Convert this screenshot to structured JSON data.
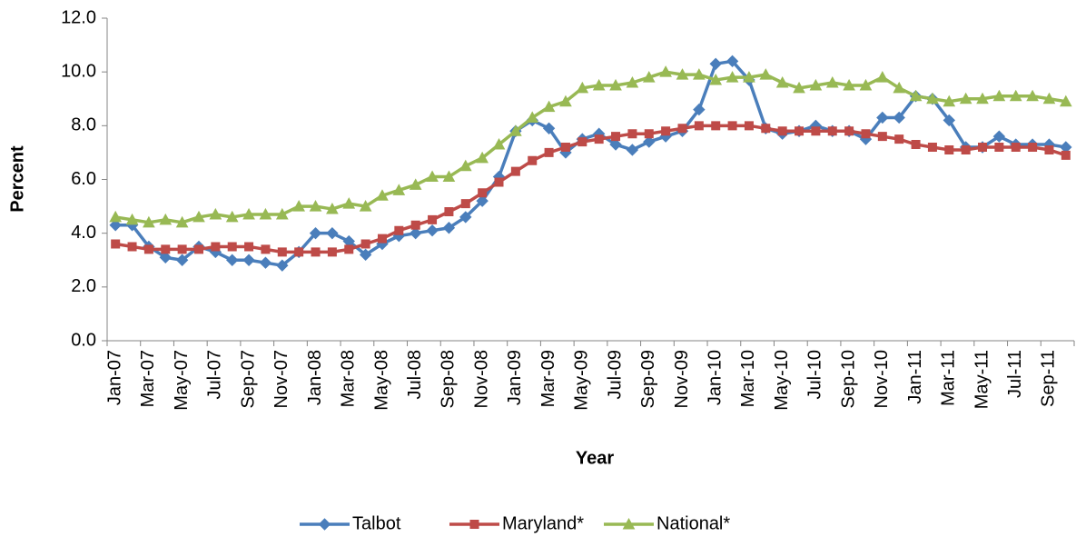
{
  "chart_data": {
    "type": "line",
    "y_label": "Percent",
    "x_label": "Year",
    "categories": [
      "Jan-07",
      null,
      "Mar-07",
      null,
      "May-07",
      null,
      "Jul-07",
      null,
      "Sep-07",
      null,
      "Nov-07",
      null,
      "Jan-08",
      null,
      "Mar-08",
      null,
      "May-08",
      null,
      "Jul-08",
      null,
      "Sep-08",
      null,
      "Nov-08",
      null,
      "Jan-09",
      null,
      "Mar-09",
      null,
      "May-09",
      null,
      "Jul-09",
      null,
      "Sep-09",
      null,
      "Nov-09",
      null,
      "Jan-10",
      null,
      "Mar-10",
      null,
      "May-10",
      null,
      "Jul-10",
      null,
      "Sep-10",
      null,
      "Nov-10",
      null,
      "Jan-11",
      null,
      "Mar-11",
      null,
      "May-11",
      null,
      "Jul-11",
      null,
      "Sep-11",
      null
    ],
    "series": [
      {
        "name": "Talbot",
        "color": "#4a7ebb",
        "marker": "diamond",
        "values": [
          4.3,
          4.3,
          3.5,
          3.1,
          3.0,
          3.5,
          3.3,
          3.0,
          3.0,
          2.9,
          2.8,
          3.3,
          4.0,
          4.0,
          3.7,
          3.2,
          3.6,
          3.9,
          4.0,
          4.1,
          4.2,
          4.6,
          5.2,
          6.1,
          7.8,
          8.2,
          7.9,
          7.0,
          7.5,
          7.7,
          7.3,
          7.1,
          7.4,
          7.6,
          7.8,
          8.6,
          10.3,
          10.4,
          9.7,
          7.9,
          7.7,
          7.8,
          8.0,
          7.8,
          7.8,
          7.5,
          8.3,
          8.3,
          9.1,
          9.0,
          8.2,
          7.2,
          7.2,
          7.6,
          7.3,
          7.3,
          7.3,
          7.2
        ]
      },
      {
        "name": "Maryland*",
        "color": "#be4b48",
        "marker": "square",
        "values": [
          3.6,
          3.5,
          3.4,
          3.4,
          3.4,
          3.4,
          3.5,
          3.5,
          3.5,
          3.4,
          3.3,
          3.3,
          3.3,
          3.3,
          3.4,
          3.6,
          3.8,
          4.1,
          4.3,
          4.5,
          4.8,
          5.1,
          5.5,
          5.9,
          6.3,
          6.7,
          7.0,
          7.2,
          7.4,
          7.5,
          7.6,
          7.7,
          7.7,
          7.8,
          7.9,
          8.0,
          8.0,
          8.0,
          8.0,
          7.9,
          7.8,
          7.8,
          7.8,
          7.8,
          7.8,
          7.7,
          7.6,
          7.5,
          7.3,
          7.2,
          7.1,
          7.1,
          7.2,
          7.2,
          7.2,
          7.2,
          7.1,
          6.9
        ]
      },
      {
        "name": "National*",
        "color": "#98b954",
        "marker": "triangle",
        "values": [
          4.6,
          4.5,
          4.4,
          4.5,
          4.4,
          4.6,
          4.7,
          4.6,
          4.7,
          4.7,
          4.7,
          5.0,
          5.0,
          4.9,
          5.1,
          5.0,
          5.4,
          5.6,
          5.8,
          6.1,
          6.1,
          6.5,
          6.8,
          7.3,
          7.8,
          8.3,
          8.7,
          8.9,
          9.4,
          9.5,
          9.5,
          9.6,
          9.8,
          10.0,
          9.9,
          9.9,
          9.7,
          9.8,
          9.8,
          9.9,
          9.6,
          9.4,
          9.5,
          9.6,
          9.5,
          9.5,
          9.8,
          9.4,
          9.1,
          9.0,
          8.9,
          9.0,
          9.0,
          9.1,
          9.1,
          9.1,
          9.0,
          8.9
        ]
      }
    ],
    "ylim": [
      0,
      12
    ],
    "yticks": [
      {
        "value": 0,
        "label": "0.0"
      },
      {
        "value": 2,
        "label": "2.0"
      },
      {
        "value": 4,
        "label": "4.0"
      },
      {
        "value": 6,
        "label": "6.0"
      },
      {
        "value": 8,
        "label": "8.0"
      },
      {
        "value": 10,
        "label": "10.0"
      },
      {
        "value": 12,
        "label": "12.0"
      }
    ],
    "legend": "bottom"
  }
}
